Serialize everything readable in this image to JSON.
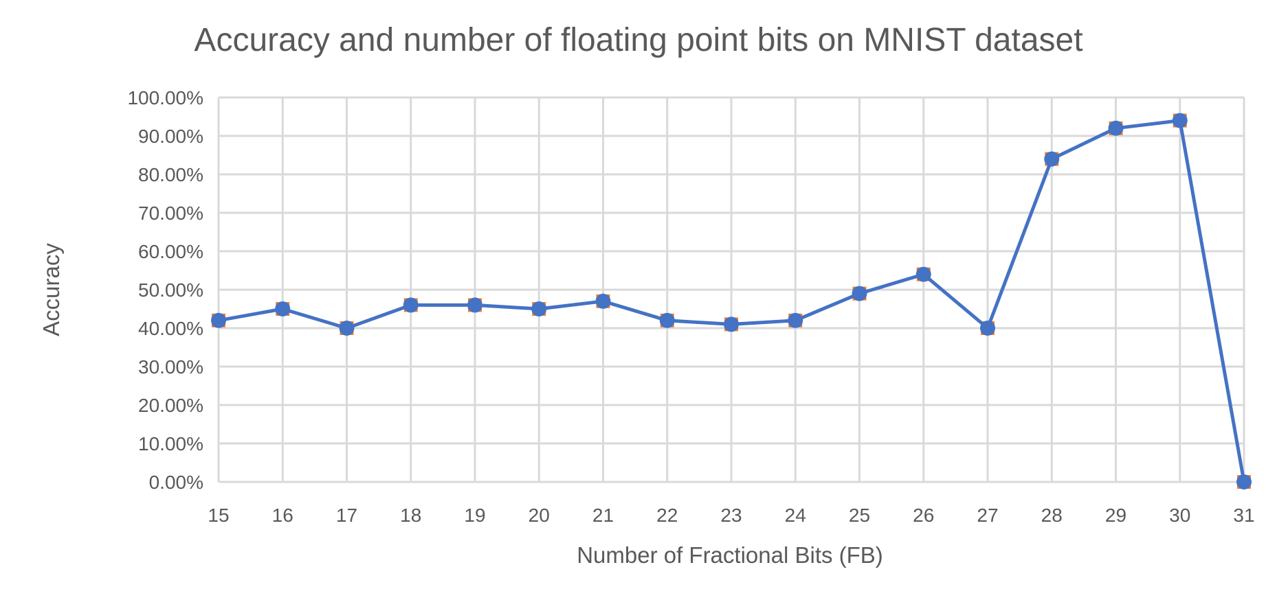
{
  "chart_data": {
    "type": "line",
    "title": "Accuracy and number of floating point bits on MNIST dataset",
    "xlabel": "Number of Fractional Bits (FB)",
    "ylabel": "Accuracy",
    "ylim": [
      0,
      100
    ],
    "grid": true,
    "legend": "none",
    "x": [
      15,
      16,
      17,
      18,
      19,
      20,
      21,
      22,
      23,
      24,
      25,
      26,
      27,
      28,
      29,
      30,
      31
    ],
    "x_tick_labels": [
      "15",
      "16",
      "17",
      "18",
      "19",
      "20",
      "21",
      "22",
      "23",
      "24",
      "25",
      "26",
      "27",
      "28",
      "29",
      "30",
      "31"
    ],
    "y_tick_labels": [
      "0.00%",
      "10.00%",
      "20.00%",
      "30.00%",
      "40.00%",
      "50.00%",
      "60.00%",
      "70.00%",
      "80.00%",
      "90.00%",
      "100.00%"
    ],
    "y_ticks": [
      0,
      10,
      20,
      30,
      40,
      50,
      60,
      70,
      80,
      90,
      100
    ],
    "series": [
      {
        "values": [
          42,
          45,
          40,
          46,
          46,
          45,
          47,
          42,
          41,
          42,
          49,
          54,
          40,
          84,
          92,
          94,
          0
        ],
        "color": "#4472c4",
        "marker_color": "#4472c4",
        "underlay_marker_color": "#ed7d31"
      }
    ]
  }
}
